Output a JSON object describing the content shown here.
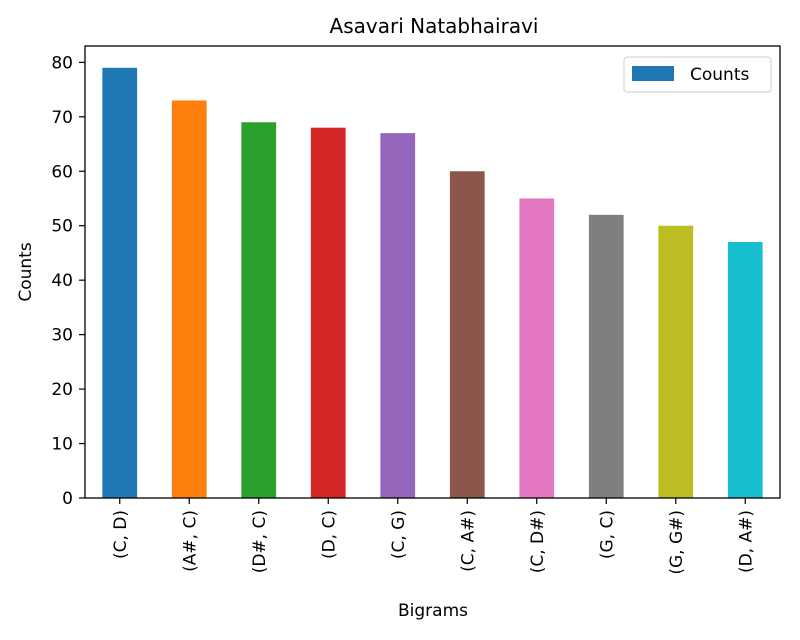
{
  "chart_data": {
    "type": "bar",
    "title": "Asavari Natabhairavi",
    "xlabel": "Bigrams",
    "ylabel": "Counts",
    "categories": [
      "(C, D)",
      "(A#, C)",
      "(D#, C)",
      "(D, C)",
      "(C, G)",
      "(C, A#)",
      "(C, D#)",
      "(G, C)",
      "(G, G#)",
      "(D, A#)"
    ],
    "series": [
      {
        "name": "Counts",
        "values": [
          79,
          73,
          69,
          68,
          67,
          60,
          55,
          52,
          50,
          47
        ]
      }
    ],
    "bar_colors": [
      "#1f77b4",
      "#ff7f0e",
      "#2ca02c",
      "#d62728",
      "#9467bd",
      "#8c564b",
      "#e377c2",
      "#7f7f7f",
      "#bcbd22",
      "#17becf"
    ],
    "legend_color": "#1f77b4",
    "ylim": [
      0,
      83
    ],
    "yticks": [
      0,
      10,
      20,
      30,
      40,
      50,
      60,
      70,
      80
    ],
    "grid": false,
    "legend_position": "top-right"
  }
}
